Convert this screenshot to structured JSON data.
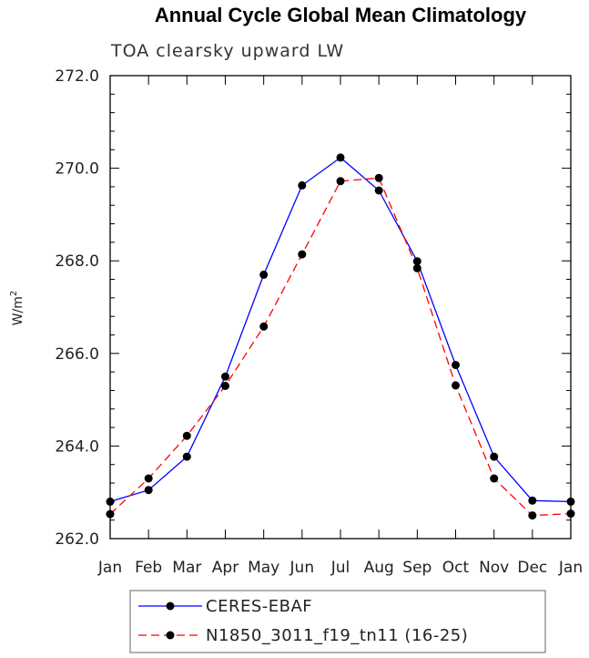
{
  "chart_data": {
    "type": "line",
    "title": "Annual Cycle Global Mean Climatology",
    "subtitle": "TOA clearsky upward LW",
    "ylabel": "W/m",
    "ylabel_sup": "2",
    "xlabel": "",
    "ylim": [
      262.0,
      272.0
    ],
    "yticks": [
      262.0,
      264.0,
      266.0,
      268.0,
      270.0,
      272.0
    ],
    "ytick_labels": [
      "262.0",
      "264.0",
      "266.0",
      "268.0",
      "270.0",
      "272.0"
    ],
    "categories": [
      "Jan",
      "Feb",
      "Mar",
      "Apr",
      "May",
      "Jun",
      "Jul",
      "Aug",
      "Sep",
      "Oct",
      "Nov",
      "Dec",
      "Jan"
    ],
    "legend_position": "bottom",
    "series": [
      {
        "name": "CERES-EBAF",
        "color": "#0000ff",
        "dash": "solid",
        "marker": "circle",
        "values": [
          262.8,
          263.05,
          263.77,
          265.5,
          267.7,
          269.63,
          270.23,
          269.52,
          267.99,
          265.75,
          263.77,
          262.82,
          262.8
        ]
      },
      {
        "name": "N1850_3011_f19_tn11 (16-25)",
        "color": "#ff0000",
        "dash": "dashed",
        "marker": "circle",
        "values": [
          262.53,
          263.3,
          264.22,
          265.3,
          266.58,
          268.14,
          269.72,
          269.79,
          267.84,
          265.31,
          263.3,
          262.5,
          262.54
        ]
      }
    ]
  }
}
